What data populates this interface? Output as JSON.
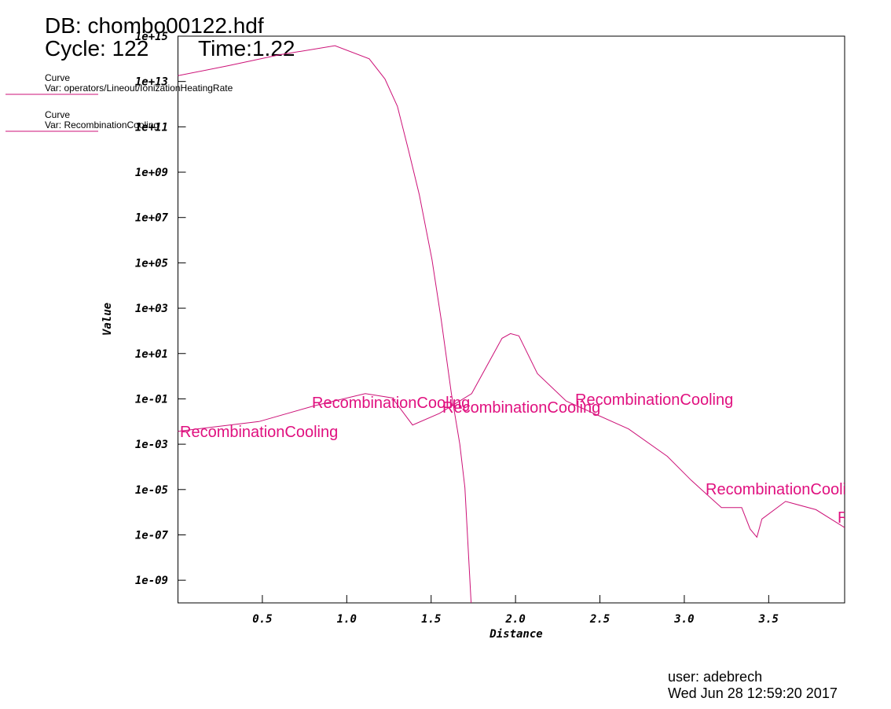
{
  "header": {
    "db": "DB: chombo00122.hdf",
    "cycle": "Cycle: 122",
    "time": "Time:1.22"
  },
  "footer": {
    "user": "user: adebrech",
    "date": "Wed Jun 28 12:59:20 2017"
  },
  "chart_data": {
    "type": "line",
    "x_label": "Distance",
    "y_label": "Value",
    "legend_title": "Curve",
    "curve_label": "RecombinationCooling",
    "log_y": true,
    "xlim": [
      0,
      3.95
    ],
    "ylim": [
      1e-10,
      1000000000000000.0
    ],
    "xticks": [
      0.5,
      {
        "value": 1,
        "label": "1.0"
      },
      1.5,
      {
        "value": 2,
        "label": "2.0"
      },
      2.5,
      {
        "value": 3,
        "label": "3.0"
      },
      3.5
    ],
    "yticks": [
      {
        "value": 1000000000000000.0,
        "label": "1e+15"
      },
      {
        "value": 10000000000000.0,
        "label": "1e+13"
      },
      {
        "value": 100000000000.0,
        "label": "1e+11"
      },
      {
        "value": 1000000000.0,
        "label": "1e+09"
      },
      {
        "value": 10000000.0,
        "label": "1e+07"
      },
      {
        "value": 100000.0,
        "label": "1e+05"
      },
      {
        "value": 1000.0,
        "label": "1e+03"
      },
      {
        "value": 10.0,
        "label": "1e+01"
      },
      {
        "value": 0.1,
        "label": "1e-01"
      },
      {
        "value": 0.001,
        "label": "1e-03"
      },
      {
        "value": 1e-05,
        "label": "1e-05"
      },
      {
        "value": 1e-07,
        "label": "1e-07"
      },
      {
        "value": 1e-09,
        "label": "1e-09"
      }
    ],
    "series": [
      {
        "name": "Var: operators/Lineout/IonizationHeatingRate",
        "color": "#cc1177",
        "x": [
          0,
          0.3,
          0.6,
          0.93,
          1.133,
          1.226,
          1.3,
          1.365,
          1.43,
          1.505,
          1.56,
          1.62,
          1.67,
          1.7,
          1.737
        ],
        "values": [
          18000000000000.0,
          50000000000000.0,
          150000000000000.0,
          380000000000000.0,
          100000000000000.0,
          13000000000000.0,
          800000000000.0,
          10000000000.0,
          100000000.0,
          140000.0,
          300.0,
          0.17,
          0.001,
          1.2e-05,
          1e-10
        ]
      },
      {
        "name": "Var: RecombinationCooling",
        "color": "#cc1177",
        "x": [
          0,
          0.48,
          0.81,
          1.11,
          1.27,
          1.39,
          1.55,
          1.74,
          1.92,
          1.97,
          2.02,
          2.13,
          2.3,
          2.67,
          2.9,
          3.04,
          3.22,
          3.34,
          3.39,
          3.43,
          3.46,
          3.6,
          3.78,
          3.95
        ],
        "values": [
          0.0037,
          0.01,
          0.05,
          0.17,
          0.11,
          0.007,
          0.023,
          0.17,
          47,
          76,
          60,
          1.3,
          0.08,
          0.0047,
          0.00029,
          2.6e-05,
          1.6e-06,
          1.6e-06,
          1.8e-07,
          7.9e-08,
          5e-07,
          3e-06,
          1.3e-06,
          2.1e-07
        ]
      }
    ]
  }
}
